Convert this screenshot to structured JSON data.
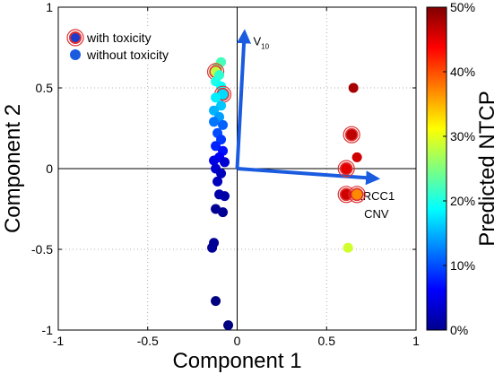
{
  "chart_data": {
    "type": "scatter",
    "xlabel": "Component 1",
    "ylabel": "Component 2",
    "xlim": [
      -1,
      1
    ],
    "ylim": [
      -1,
      1
    ],
    "xticks": [
      "-1",
      "-0.5",
      "0",
      "0.5",
      "1"
    ],
    "yticks": [
      "-1",
      "-0.5",
      "0",
      "0.5",
      "1"
    ],
    "grid": true,
    "legend": {
      "placement": "top-left",
      "entries": [
        {
          "label": "with toxicity",
          "marker": "dot-with-red-ring"
        },
        {
          "label": "without toxicity",
          "marker": "dot"
        }
      ]
    },
    "colorbar": {
      "label": "Predicted NTCP",
      "ticks": [
        "0%",
        "10%",
        "20%",
        "30%",
        "40%",
        "50%"
      ],
      "range": [
        0,
        50
      ],
      "colormap": "jet"
    },
    "vectors": [
      {
        "label_main": "V",
        "label_sub": "10",
        "x": 0.04,
        "y": 0.82
      },
      {
        "label_lines": [
          "XRCC1",
          "CNV"
        ],
        "x": 0.76,
        "y": -0.06
      }
    ],
    "points": [
      {
        "x": -0.09,
        "y": 0.66,
        "ntcp": 22,
        "toxicity": false
      },
      {
        "x": -0.11,
        "y": 0.63,
        "ntcp": 24,
        "toxicity": false
      },
      {
        "x": -0.12,
        "y": 0.6,
        "ntcp": 28,
        "toxicity": true
      },
      {
        "x": -0.1,
        "y": 0.58,
        "ntcp": 21,
        "toxicity": false
      },
      {
        "x": -0.12,
        "y": 0.54,
        "ntcp": 20,
        "toxicity": false
      },
      {
        "x": -0.09,
        "y": 0.51,
        "ntcp": 19,
        "toxicity": false
      },
      {
        "x": -0.08,
        "y": 0.46,
        "ntcp": 17,
        "toxicity": true
      },
      {
        "x": -0.12,
        "y": 0.44,
        "ntcp": 18,
        "toxicity": false
      },
      {
        "x": -0.09,
        "y": 0.39,
        "ntcp": 16,
        "toxicity": false
      },
      {
        "x": -0.13,
        "y": 0.36,
        "ntcp": 15,
        "toxicity": false
      },
      {
        "x": -0.1,
        "y": 0.32,
        "ntcp": 14,
        "toxicity": false
      },
      {
        "x": -0.13,
        "y": 0.29,
        "ntcp": 12,
        "toxicity": false
      },
      {
        "x": -0.08,
        "y": 0.27,
        "ntcp": 11,
        "toxicity": false
      },
      {
        "x": -0.11,
        "y": 0.22,
        "ntcp": 10,
        "toxicity": false
      },
      {
        "x": -0.09,
        "y": 0.18,
        "ntcp": 9,
        "toxicity": false
      },
      {
        "x": -0.12,
        "y": 0.14,
        "ntcp": 8,
        "toxicity": false
      },
      {
        "x": -0.08,
        "y": 0.11,
        "ntcp": 7,
        "toxicity": false
      },
      {
        "x": -0.1,
        "y": 0.07,
        "ntcp": 6,
        "toxicity": false
      },
      {
        "x": -0.13,
        "y": 0.05,
        "ntcp": 5,
        "toxicity": false
      },
      {
        "x": -0.07,
        "y": 0.04,
        "ntcp": 4,
        "toxicity": false
      },
      {
        "x": -0.12,
        "y": 0.0,
        "ntcp": 4,
        "toxicity": false
      },
      {
        "x": -0.09,
        "y": -0.03,
        "ntcp": 3,
        "toxicity": false
      },
      {
        "x": -0.11,
        "y": -0.08,
        "ntcp": 3,
        "toxicity": false
      },
      {
        "x": -0.1,
        "y": -0.16,
        "ntcp": 2,
        "toxicity": false
      },
      {
        "x": -0.07,
        "y": -0.17,
        "ntcp": 2,
        "toxicity": false
      },
      {
        "x": -0.12,
        "y": -0.25,
        "ntcp": 1,
        "toxicity": false
      },
      {
        "x": -0.08,
        "y": -0.27,
        "ntcp": 1,
        "toxicity": false
      },
      {
        "x": -0.13,
        "y": -0.46,
        "ntcp": 1,
        "toxicity": false
      },
      {
        "x": -0.14,
        "y": -0.49,
        "ntcp": 1,
        "toxicity": false
      },
      {
        "x": -0.12,
        "y": -0.82,
        "ntcp": 0,
        "toxicity": false
      },
      {
        "x": -0.05,
        "y": -0.97,
        "ntcp": 0,
        "toxicity": false
      },
      {
        "x": 0.65,
        "y": 0.5,
        "ntcp": 48,
        "toxicity": false
      },
      {
        "x": 0.64,
        "y": 0.21,
        "ntcp": 47,
        "toxicity": true
      },
      {
        "x": 0.67,
        "y": 0.07,
        "ntcp": 46,
        "toxicity": false
      },
      {
        "x": 0.61,
        "y": 0.0,
        "ntcp": 45,
        "toxicity": true
      },
      {
        "x": 0.61,
        "y": -0.16,
        "ntcp": 46,
        "toxicity": true
      },
      {
        "x": 0.67,
        "y": -0.16,
        "ntcp": 37,
        "toxicity": true
      },
      {
        "x": 0.62,
        "y": -0.49,
        "ntcp": 29,
        "toxicity": false
      }
    ]
  }
}
